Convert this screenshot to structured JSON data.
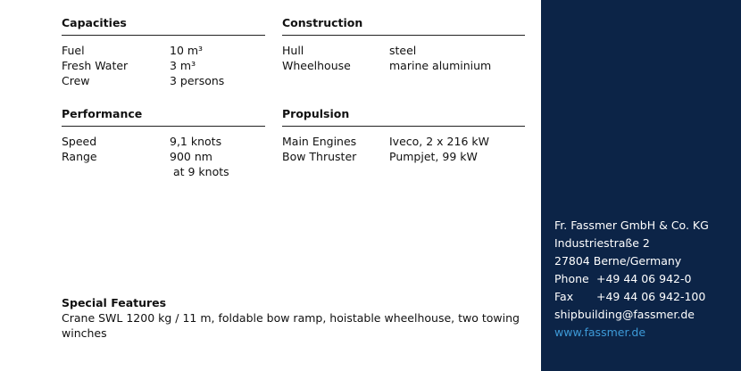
{
  "sections": {
    "capacities": {
      "title": "Capacities",
      "rows": [
        {
          "label": "Fuel",
          "value": "10 m³"
        },
        {
          "label": "Fresh Water",
          "value": "3 m³"
        },
        {
          "label": "Crew",
          "value": "3 persons"
        }
      ]
    },
    "construction": {
      "title": "Construction",
      "rows": [
        {
          "label": "Hull",
          "value": "steel"
        },
        {
          "label": "Wheelhouse",
          "value": "marine aluminium"
        }
      ]
    },
    "performance": {
      "title": "Performance",
      "rows": [
        {
          "label": "Speed",
          "value": "9,1 knots"
        },
        {
          "label": "Range",
          "value": "900 nm\n at 9 knots"
        }
      ]
    },
    "propulsion": {
      "title": "Propulsion",
      "rows": [
        {
          "label": "Main Engines",
          "value": "Iveco, 2 x 216 kW"
        },
        {
          "label": "Bow Thruster",
          "value": "Pumpjet, 99 kW"
        }
      ]
    }
  },
  "special_features": {
    "title": "Special Features",
    "text": "Crane SWL 1200 kg / 11 m, foldable bow ramp, hoistable wheelhouse, two towing winches"
  },
  "contact": {
    "company": "Fr. Fassmer GmbH & Co. KG",
    "street": "Industriestraße 2",
    "city": "27804 Berne/Germany",
    "phone_label": "Phone",
    "phone": "+49 44 06 942-0",
    "fax_label": "Fax",
    "fax": "+49 44 06 942-100",
    "email": "shipbuilding@fassmer.de",
    "website": "www.fassmer.de"
  },
  "colors": {
    "panel": "#0c2447",
    "link": "#3d9ad8"
  }
}
